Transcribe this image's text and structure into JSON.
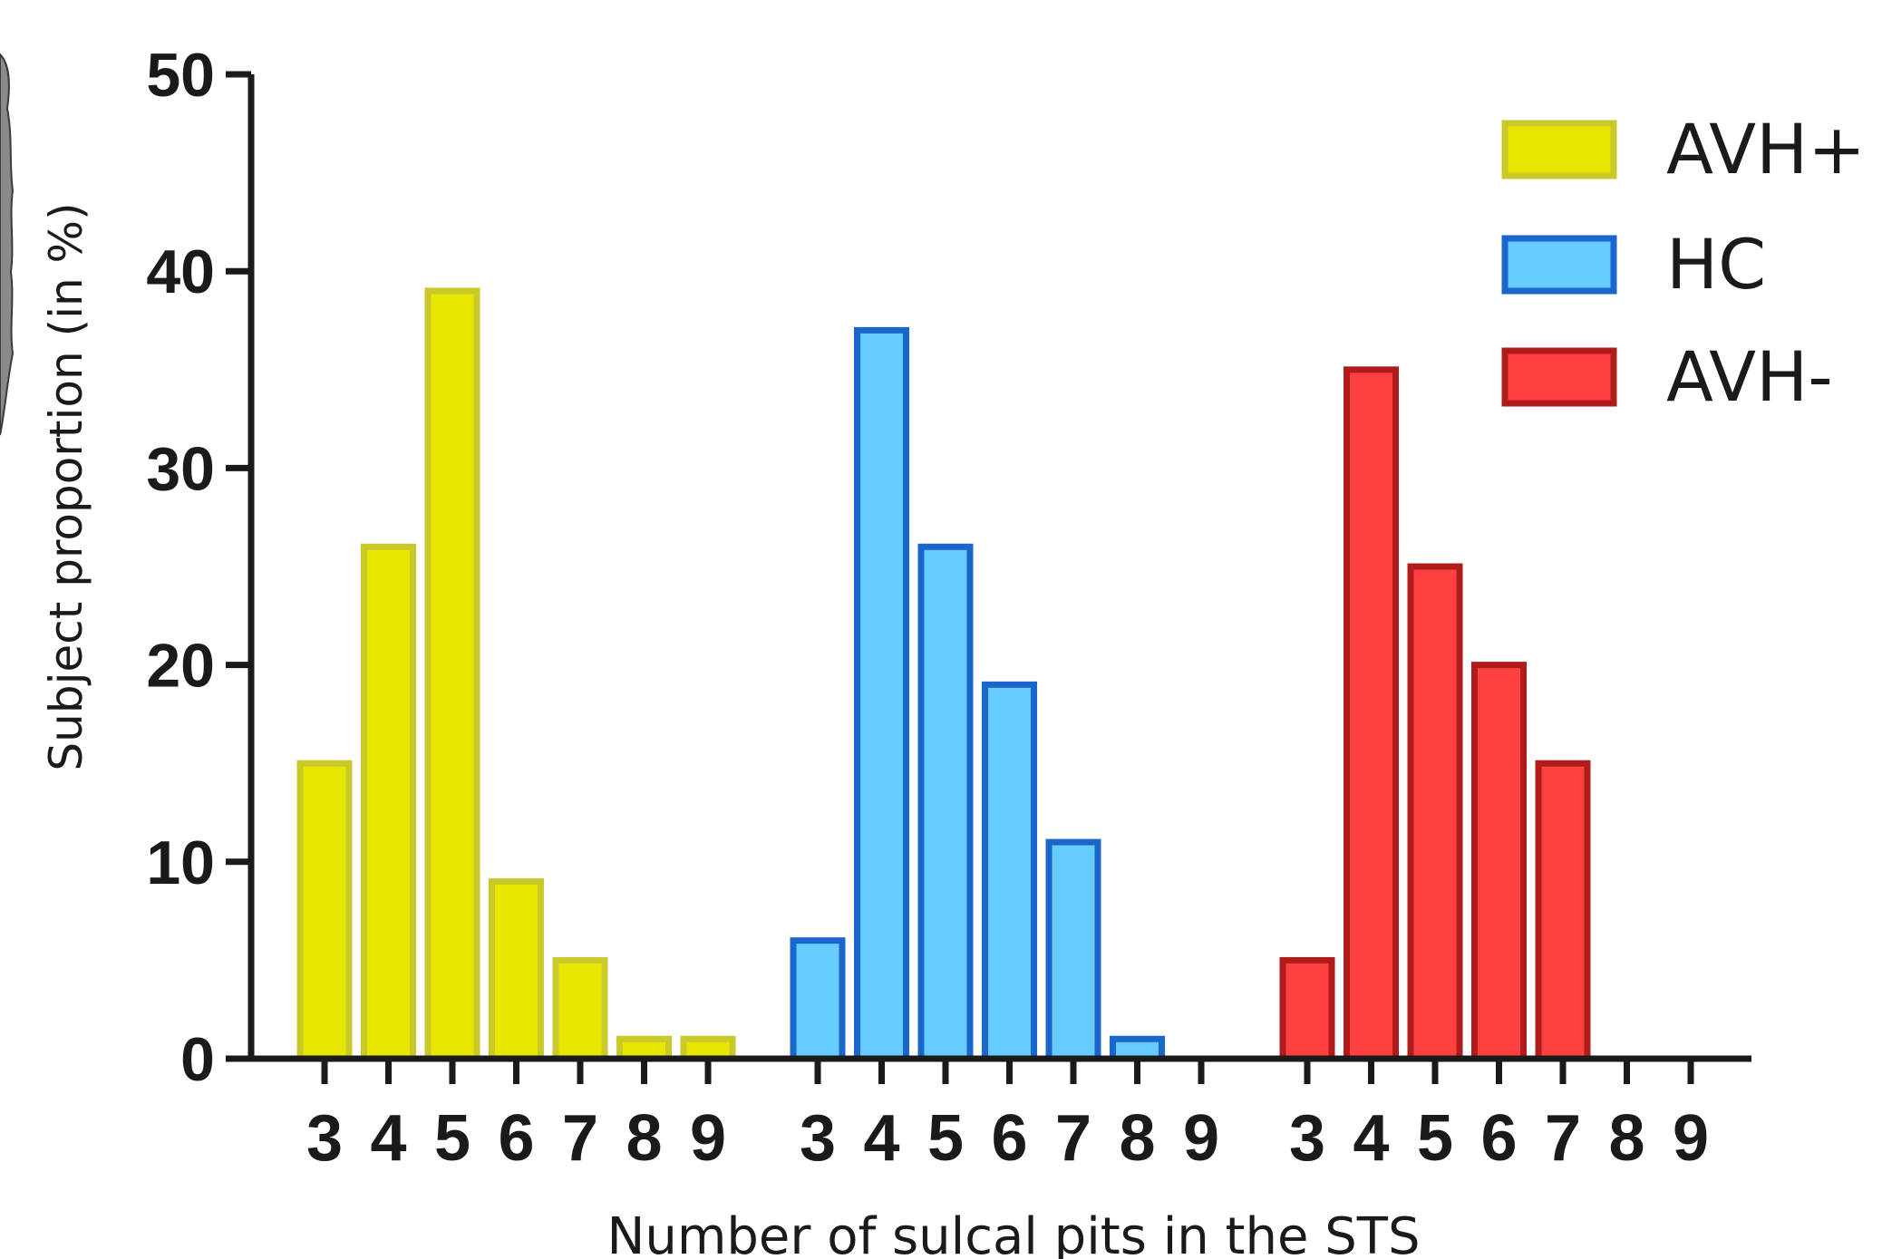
{
  "chart_data": {
    "type": "bar",
    "xlabel": "Number of sulcal pits in the STS",
    "ylabel": "Subject proportion (in %)",
    "ylim": [
      0,
      50
    ],
    "yticks": [
      0,
      10,
      20,
      30,
      40,
      50
    ],
    "categories": [
      "3",
      "4",
      "5",
      "6",
      "7",
      "8",
      "9"
    ],
    "legend_position": "top-right",
    "series": [
      {
        "name": "AVH+",
        "color": "#e6e600",
        "edge": "#c9c92a",
        "values": [
          15,
          26,
          39,
          9,
          5,
          1,
          1
        ]
      },
      {
        "name": "HC",
        "color": "#66ccff",
        "edge": "#1a66cc",
        "values": [
          6,
          37,
          26,
          19,
          11,
          1,
          0
        ]
      },
      {
        "name": "AVH-",
        "color": "#ff4040",
        "edge": "#b01c1c",
        "values": [
          5,
          35,
          25,
          20,
          15,
          0,
          0
        ]
      }
    ]
  }
}
